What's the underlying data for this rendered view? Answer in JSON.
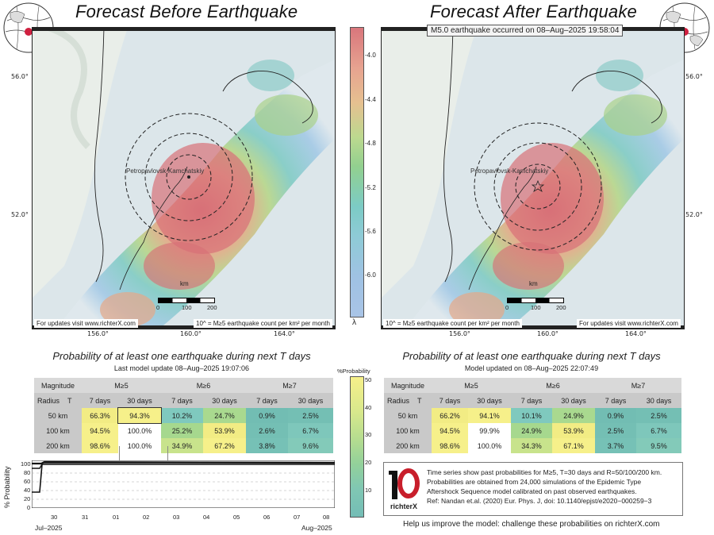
{
  "left_map": {
    "title": "Forecast Before Earthquake",
    "city": "Petropavlovsk-Kamchatskiy",
    "note_left": "For updates visit www.richterX.com",
    "note_right": "10^ = M≥5 earthquake count per km² per month",
    "scale_unit": "km",
    "scale_ticks": [
      "0",
      "100",
      "200"
    ],
    "lat_labels": [
      "56.0°",
      "52.0°"
    ],
    "lon_labels": [
      "156.0°",
      "160.0°",
      "164.0°"
    ]
  },
  "right_map": {
    "title": "Forecast After Earthquake",
    "banner": "M5.0 earthquake occurred on 08–Aug–2025 19:58:04",
    "city": "Petropavlovsk-Kamchatskiy",
    "note_left": "10^ = M≥5 earthquake count per km² per month",
    "note_right": "For updates visit www.richterX.com",
    "scale_unit": "km",
    "scale_ticks": [
      "0",
      "100",
      "200"
    ],
    "lat_labels": [
      "56.0°",
      "52.0°"
    ],
    "lon_labels": [
      "156.0°",
      "160.0°",
      "164.0°"
    ]
  },
  "lambda_colorbar": {
    "ticks": [
      "-4.0",
      "-4.4",
      "-4.8",
      "-5.2",
      "-5.6",
      "-6.0"
    ],
    "symbol": "λ"
  },
  "prob_colorbar": {
    "title": "%Probability",
    "ticks": [
      "50",
      "40",
      "30",
      "20",
      "10"
    ]
  },
  "left_table": {
    "title": "Probability of at least one earthquake during next T days",
    "subtitle": "Last model update 08–Aug–2025 19:07:06",
    "mag_label": "Magnitude",
    "radius_label": "Radius",
    "t_label": "T",
    "magnitudes": [
      "M≥5",
      "M≥6",
      "M≥7"
    ],
    "periods": [
      "7 days",
      "30 days",
      "7 days",
      "30 days",
      "7 days",
      "30 days"
    ],
    "rows": [
      {
        "radius": "50 km",
        "values": [
          "66.3%",
          "94.3%",
          "10.2%",
          "24.7%",
          "0.9%",
          "2.5%"
        ]
      },
      {
        "radius": "100 km",
        "values": [
          "94.5%",
          "100.0%",
          "25.2%",
          "53.9%",
          "2.6%",
          "6.7%"
        ]
      },
      {
        "radius": "200 km",
        "values": [
          "98.6%",
          "100.0%",
          "34.9%",
          "67.2%",
          "3.8%",
          "9.6%"
        ]
      }
    ]
  },
  "right_table": {
    "title": "Probability of at least one earthquake during next T days",
    "subtitle": "Model updated on 08–Aug–2025 22:07:49",
    "mag_label": "Magnitude",
    "radius_label": "Radius",
    "t_label": "T",
    "magnitudes": [
      "M≥5",
      "M≥6",
      "M≥7"
    ],
    "periods": [
      "7 days",
      "30 days",
      "7 days",
      "30 days",
      "7 days",
      "30 days"
    ],
    "rows": [
      {
        "radius": "50 km",
        "values": [
          "66.2%",
          "94.1%",
          "10.1%",
          "24.9%",
          "0.9%",
          "2.5%"
        ]
      },
      {
        "radius": "100 km",
        "values": [
          "94.5%",
          "99.9%",
          "24.9%",
          "53.9%",
          "2.5%",
          "6.7%"
        ]
      },
      {
        "radius": "200 km",
        "values": [
          "98.6%",
          "100.0%",
          "34.3%",
          "67.1%",
          "3.7%",
          "9.5%"
        ]
      }
    ]
  },
  "timeseries": {
    "ylabel": "% Probability",
    "yticks": [
      "100",
      "80",
      "60",
      "40",
      "20",
      "0"
    ],
    "day_ticks": [
      "30",
      "31",
      "01",
      "02",
      "03",
      "04",
      "05",
      "06",
      "07",
      "08"
    ],
    "month_labels": [
      "Jul–2025",
      "Aug–2025"
    ]
  },
  "info": {
    "logo_text": "richterX",
    "lines": [
      "Time series show past probabilities for M≥5, T=30 days and R=50/100/200 km.",
      "Probabilities are obtained from 24,000 simulations of the Epidemic Type",
      "Aftershock Sequence model calibrated on past observed earthquakes.",
      "Ref: Nandan et.al. (2020) Eur. Phys. J, doi: 10.1140/epjst/e2020−000259−3"
    ],
    "footer": "Help us improve the model: challenge these probabilities on richterX.com"
  },
  "colors": {
    "high": "#e07a7a",
    "mid_orange": "#e8b07a",
    "mid_green": "#a8d08a",
    "low_teal": "#7cc7c4",
    "low_blue": "#9ec3e0",
    "cell_yellow": "#f4ef86",
    "cell_teal": "#7fc5b9",
    "cell_green": "#a9d98f"
  }
}
